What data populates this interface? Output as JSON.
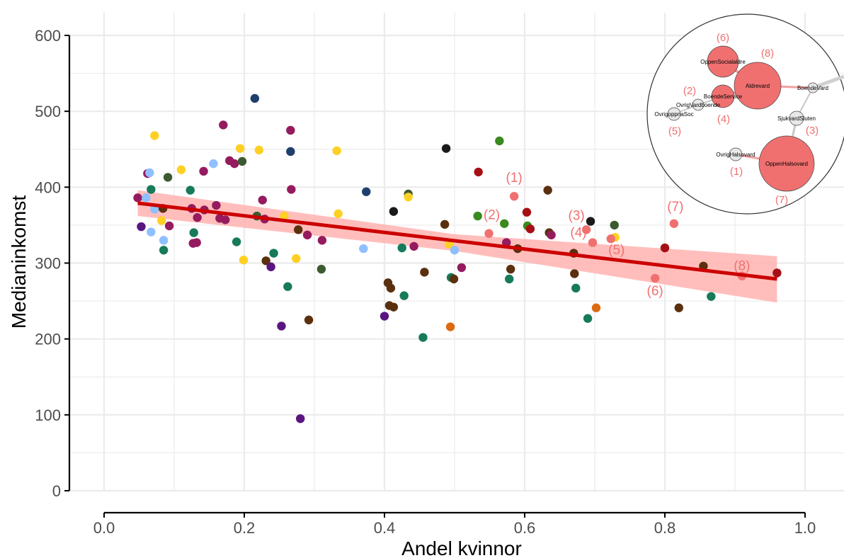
{
  "chart_data": {
    "type": "scatter",
    "xlabel": "Andel kvinnor",
    "ylabel": "Medianinkomst",
    "xlim": [
      0,
      1.05
    ],
    "ylim": [
      0,
      600
    ],
    "x_ticks": [
      0.0,
      0.2,
      0.4,
      0.6,
      0.8,
      1.0
    ],
    "x_tick_labels": [
      "0.0",
      "0.2",
      "0.4",
      "0.6",
      "0.8",
      "1.0"
    ],
    "y_ticks": [
      0,
      100,
      200,
      300,
      400,
      500,
      600
    ],
    "y_tick_labels": [
      "0",
      "100",
      "200",
      "300",
      "400",
      "500",
      "600"
    ],
    "grid": true,
    "colors": {
      "yellow": "#ffd024",
      "lightblue": "#8fbfff",
      "navy": "#1f3f6e",
      "green_teal": "#177a5a",
      "magenta": "#951b5e",
      "purple": "#5b1580",
      "darkgreen": "#3c5a30",
      "brown": "#5a300f",
      "black": "#1a1a1a",
      "red": "#a50f15",
      "green": "#3a8a1e",
      "orange": "#dd6a10",
      "gray": "#8c8c8c",
      "highlight": "#f07070",
      "fit_line": "#cc0000",
      "ci_band": "#ffb3b0"
    },
    "points": [
      {
        "x": 0.048,
        "y": 386,
        "c": "magenta"
      },
      {
        "x": 0.053,
        "y": 348,
        "c": "purple"
      },
      {
        "x": 0.06,
        "y": 386,
        "c": "lightblue"
      },
      {
        "x": 0.062,
        "y": 418,
        "c": "magenta"
      },
      {
        "x": 0.065,
        "y": 419,
        "c": "lightblue"
      },
      {
        "x": 0.067,
        "y": 397,
        "c": "green_teal"
      },
      {
        "x": 0.067,
        "y": 341,
        "c": "lightblue"
      },
      {
        "x": 0.072,
        "y": 468,
        "c": "yellow"
      },
      {
        "x": 0.072,
        "y": 371,
        "c": "lightblue"
      },
      {
        "x": 0.082,
        "y": 356,
        "c": "yellow"
      },
      {
        "x": 0.084,
        "y": 372,
        "c": "brown"
      },
      {
        "x": 0.085,
        "y": 317,
        "c": "green_teal"
      },
      {
        "x": 0.085,
        "y": 330,
        "c": "lightblue"
      },
      {
        "x": 0.091,
        "y": 413,
        "c": "darkgreen"
      },
      {
        "x": 0.093,
        "y": 349,
        "c": "magenta"
      },
      {
        "x": 0.11,
        "y": 423,
        "c": "yellow"
      },
      {
        "x": 0.123,
        "y": 396,
        "c": "green_teal"
      },
      {
        "x": 0.125,
        "y": 372,
        "c": "magenta"
      },
      {
        "x": 0.127,
        "y": 326,
        "c": "magenta"
      },
      {
        "x": 0.128,
        "y": 340,
        "c": "green_teal"
      },
      {
        "x": 0.132,
        "y": 327,
        "c": "magenta"
      },
      {
        "x": 0.133,
        "y": 360,
        "c": "magenta"
      },
      {
        "x": 0.142,
        "y": 421,
        "c": "magenta"
      },
      {
        "x": 0.143,
        "y": 370,
        "c": "magenta"
      },
      {
        "x": 0.156,
        "y": 431,
        "c": "lightblue"
      },
      {
        "x": 0.16,
        "y": 376,
        "c": "magenta"
      },
      {
        "x": 0.165,
        "y": 359,
        "c": "magenta"
      },
      {
        "x": 0.17,
        "y": 482,
        "c": "magenta"
      },
      {
        "x": 0.173,
        "y": 357,
        "c": "magenta"
      },
      {
        "x": 0.179,
        "y": 435,
        "c": "magenta"
      },
      {
        "x": 0.186,
        "y": 431,
        "c": "magenta"
      },
      {
        "x": 0.189,
        "y": 328,
        "c": "green_teal"
      },
      {
        "x": 0.194,
        "y": 451,
        "c": "yellow"
      },
      {
        "x": 0.197,
        "y": 434,
        "c": "darkgreen"
      },
      {
        "x": 0.199,
        "y": 304,
        "c": "yellow"
      },
      {
        "x": 0.215,
        "y": 517,
        "c": "navy"
      },
      {
        "x": 0.218,
        "y": 362,
        "c": "darkgreen"
      },
      {
        "x": 0.221,
        "y": 449,
        "c": "yellow"
      },
      {
        "x": 0.226,
        "y": 383,
        "c": "magenta"
      },
      {
        "x": 0.229,
        "y": 358,
        "c": "magenta"
      },
      {
        "x": 0.231,
        "y": 303,
        "c": "brown"
      },
      {
        "x": 0.238,
        "y": 295,
        "c": "purple"
      },
      {
        "x": 0.242,
        "y": 313,
        "c": "green_teal"
      },
      {
        "x": 0.253,
        "y": 217,
        "c": "purple"
      },
      {
        "x": 0.257,
        "y": 362,
        "c": "yellow"
      },
      {
        "x": 0.262,
        "y": 269,
        "c": "green_teal"
      },
      {
        "x": 0.266,
        "y": 475,
        "c": "magenta"
      },
      {
        "x": 0.266,
        "y": 447,
        "c": "navy"
      },
      {
        "x": 0.267,
        "y": 397,
        "c": "magenta"
      },
      {
        "x": 0.274,
        "y": 306,
        "c": "yellow"
      },
      {
        "x": 0.277,
        "y": 344,
        "c": "brown"
      },
      {
        "x": 0.28,
        "y": 95,
        "c": "purple"
      },
      {
        "x": 0.29,
        "y": 337,
        "c": "magenta"
      },
      {
        "x": 0.292,
        "y": 225,
        "c": "brown"
      },
      {
        "x": 0.31,
        "y": 292,
        "c": "darkgreen"
      },
      {
        "x": 0.311,
        "y": 330,
        "c": "magenta"
      },
      {
        "x": 0.332,
        "y": 448,
        "c": "yellow"
      },
      {
        "x": 0.334,
        "y": 365,
        "c": "yellow"
      },
      {
        "x": 0.37,
        "y": 319,
        "c": "lightblue"
      },
      {
        "x": 0.374,
        "y": 394,
        "c": "navy"
      },
      {
        "x": 0.4,
        "y": 230,
        "c": "purple"
      },
      {
        "x": 0.405,
        "y": 274,
        "c": "brown"
      },
      {
        "x": 0.407,
        "y": 244,
        "c": "brown"
      },
      {
        "x": 0.409,
        "y": 267,
        "c": "brown"
      },
      {
        "x": 0.413,
        "y": 368,
        "c": "black"
      },
      {
        "x": 0.413,
        "y": 242,
        "c": "brown"
      },
      {
        "x": 0.425,
        "y": 320,
        "c": "green_teal"
      },
      {
        "x": 0.428,
        "y": 257,
        "c": "green_teal"
      },
      {
        "x": 0.434,
        "y": 391,
        "c": "darkgreen"
      },
      {
        "x": 0.434,
        "y": 387,
        "c": "yellow"
      },
      {
        "x": 0.442,
        "y": 322,
        "c": "magenta"
      },
      {
        "x": 0.455,
        "y": 202,
        "c": "green_teal"
      },
      {
        "x": 0.457,
        "y": 288,
        "c": "brown"
      },
      {
        "x": 0.486,
        "y": 351,
        "c": "brown"
      },
      {
        "x": 0.488,
        "y": 451,
        "c": "black"
      },
      {
        "x": 0.492,
        "y": 325,
        "c": "yellow"
      },
      {
        "x": 0.494,
        "y": 216,
        "c": "orange"
      },
      {
        "x": 0.495,
        "y": 281,
        "c": "green_teal"
      },
      {
        "x": 0.499,
        "y": 279,
        "c": "brown"
      },
      {
        "x": 0.5,
        "y": 317,
        "c": "lightblue"
      },
      {
        "x": 0.51,
        "y": 294,
        "c": "magenta"
      },
      {
        "x": 0.533,
        "y": 362,
        "c": "green"
      },
      {
        "x": 0.534,
        "y": 420,
        "c": "red"
      },
      {
        "x": 0.564,
        "y": 461,
        "c": "green"
      },
      {
        "x": 0.571,
        "y": 352,
        "c": "green"
      },
      {
        "x": 0.574,
        "y": 327,
        "c": "magenta"
      },
      {
        "x": 0.578,
        "y": 279,
        "c": "green_teal"
      },
      {
        "x": 0.58,
        "y": 292,
        "c": "brown"
      },
      {
        "x": 0.59,
        "y": 319,
        "c": "brown"
      },
      {
        "x": 0.603,
        "y": 367,
        "c": "red"
      },
      {
        "x": 0.604,
        "y": 349,
        "c": "green"
      },
      {
        "x": 0.608,
        "y": 345,
        "c": "red"
      },
      {
        "x": 0.633,
        "y": 396,
        "c": "brown"
      },
      {
        "x": 0.635,
        "y": 340,
        "c": "brown"
      },
      {
        "x": 0.638,
        "y": 337,
        "c": "magenta"
      },
      {
        "x": 0.67,
        "y": 313,
        "c": "brown"
      },
      {
        "x": 0.671,
        "y": 286,
        "c": "brown"
      },
      {
        "x": 0.673,
        "y": 267,
        "c": "green_teal"
      },
      {
        "x": 0.69,
        "y": 227,
        "c": "green_teal"
      },
      {
        "x": 0.694,
        "y": 355,
        "c": "black"
      },
      {
        "x": 0.702,
        "y": 241,
        "c": "orange"
      },
      {
        "x": 0.728,
        "y": 350,
        "c": "darkgreen"
      },
      {
        "x": 0.729,
        "y": 334,
        "c": "yellow"
      },
      {
        "x": 0.8,
        "y": 320,
        "c": "red"
      },
      {
        "x": 0.82,
        "y": 241,
        "c": "brown"
      },
      {
        "x": 0.855,
        "y": 296,
        "c": "brown"
      },
      {
        "x": 0.866,
        "y": 256,
        "c": "green_teal"
      },
      {
        "x": 0.96,
        "y": 287,
        "c": "red"
      }
    ],
    "highlighted_points": [
      {
        "label": "(1)",
        "x": 0.585,
        "y": 388
      },
      {
        "label": "(2)",
        "x": 0.549,
        "y": 339
      },
      {
        "label": "(3)",
        "x": 0.688,
        "y": 344
      },
      {
        "label": "(4)",
        "x": 0.697,
        "y": 327
      },
      {
        "label": "(5)",
        "x": 0.723,
        "y": 332
      },
      {
        "label": "(6)",
        "x": 0.786,
        "y": 280
      },
      {
        "label": "(7)",
        "x": 0.813,
        "y": 352
      },
      {
        "label": "(8)",
        "x": 0.91,
        "y": 283
      }
    ],
    "fit_line": {
      "x": [
        0.048,
        0.96
      ],
      "y": [
        379,
        279
      ]
    },
    "ci_band": {
      "x": [
        0.048,
        0.5,
        0.96
      ],
      "upper": [
        396,
        338,
        309
      ],
      "lower": [
        362,
        316,
        248
      ]
    },
    "inset_network": {
      "nodes": [
        {
          "name": "OppenSocialaldre",
          "num": "(6)",
          "highlight": true,
          "size": 22
        },
        {
          "name": "Aldrevard",
          "num": "(8)",
          "highlight": true,
          "size": 33
        },
        {
          "name": "BoendeService",
          "num": "(2)",
          "highlight": true,
          "size": 16
        },
        {
          "name": "OvrigVardboende",
          "num": "",
          "highlight": false,
          "size": 8
        },
        {
          "name": "OvrigoppnaSoc",
          "num": "(5)",
          "highlight": false,
          "size": 9
        },
        {
          "name": "BoendeVard",
          "num": "",
          "highlight": false,
          "size": 7
        },
        {
          "name": "SjukvardSluten",
          "num": "(3)",
          "highlight": false,
          "size": 10
        },
        {
          "name": "OvrigHalsovard",
          "num": "(1)",
          "highlight": false,
          "size": 9
        },
        {
          "name": "OppenHalsovard",
          "num": "(7)",
          "highlight": true,
          "size": 39
        }
      ],
      "extra_labels": [
        "(4)"
      ]
    }
  }
}
